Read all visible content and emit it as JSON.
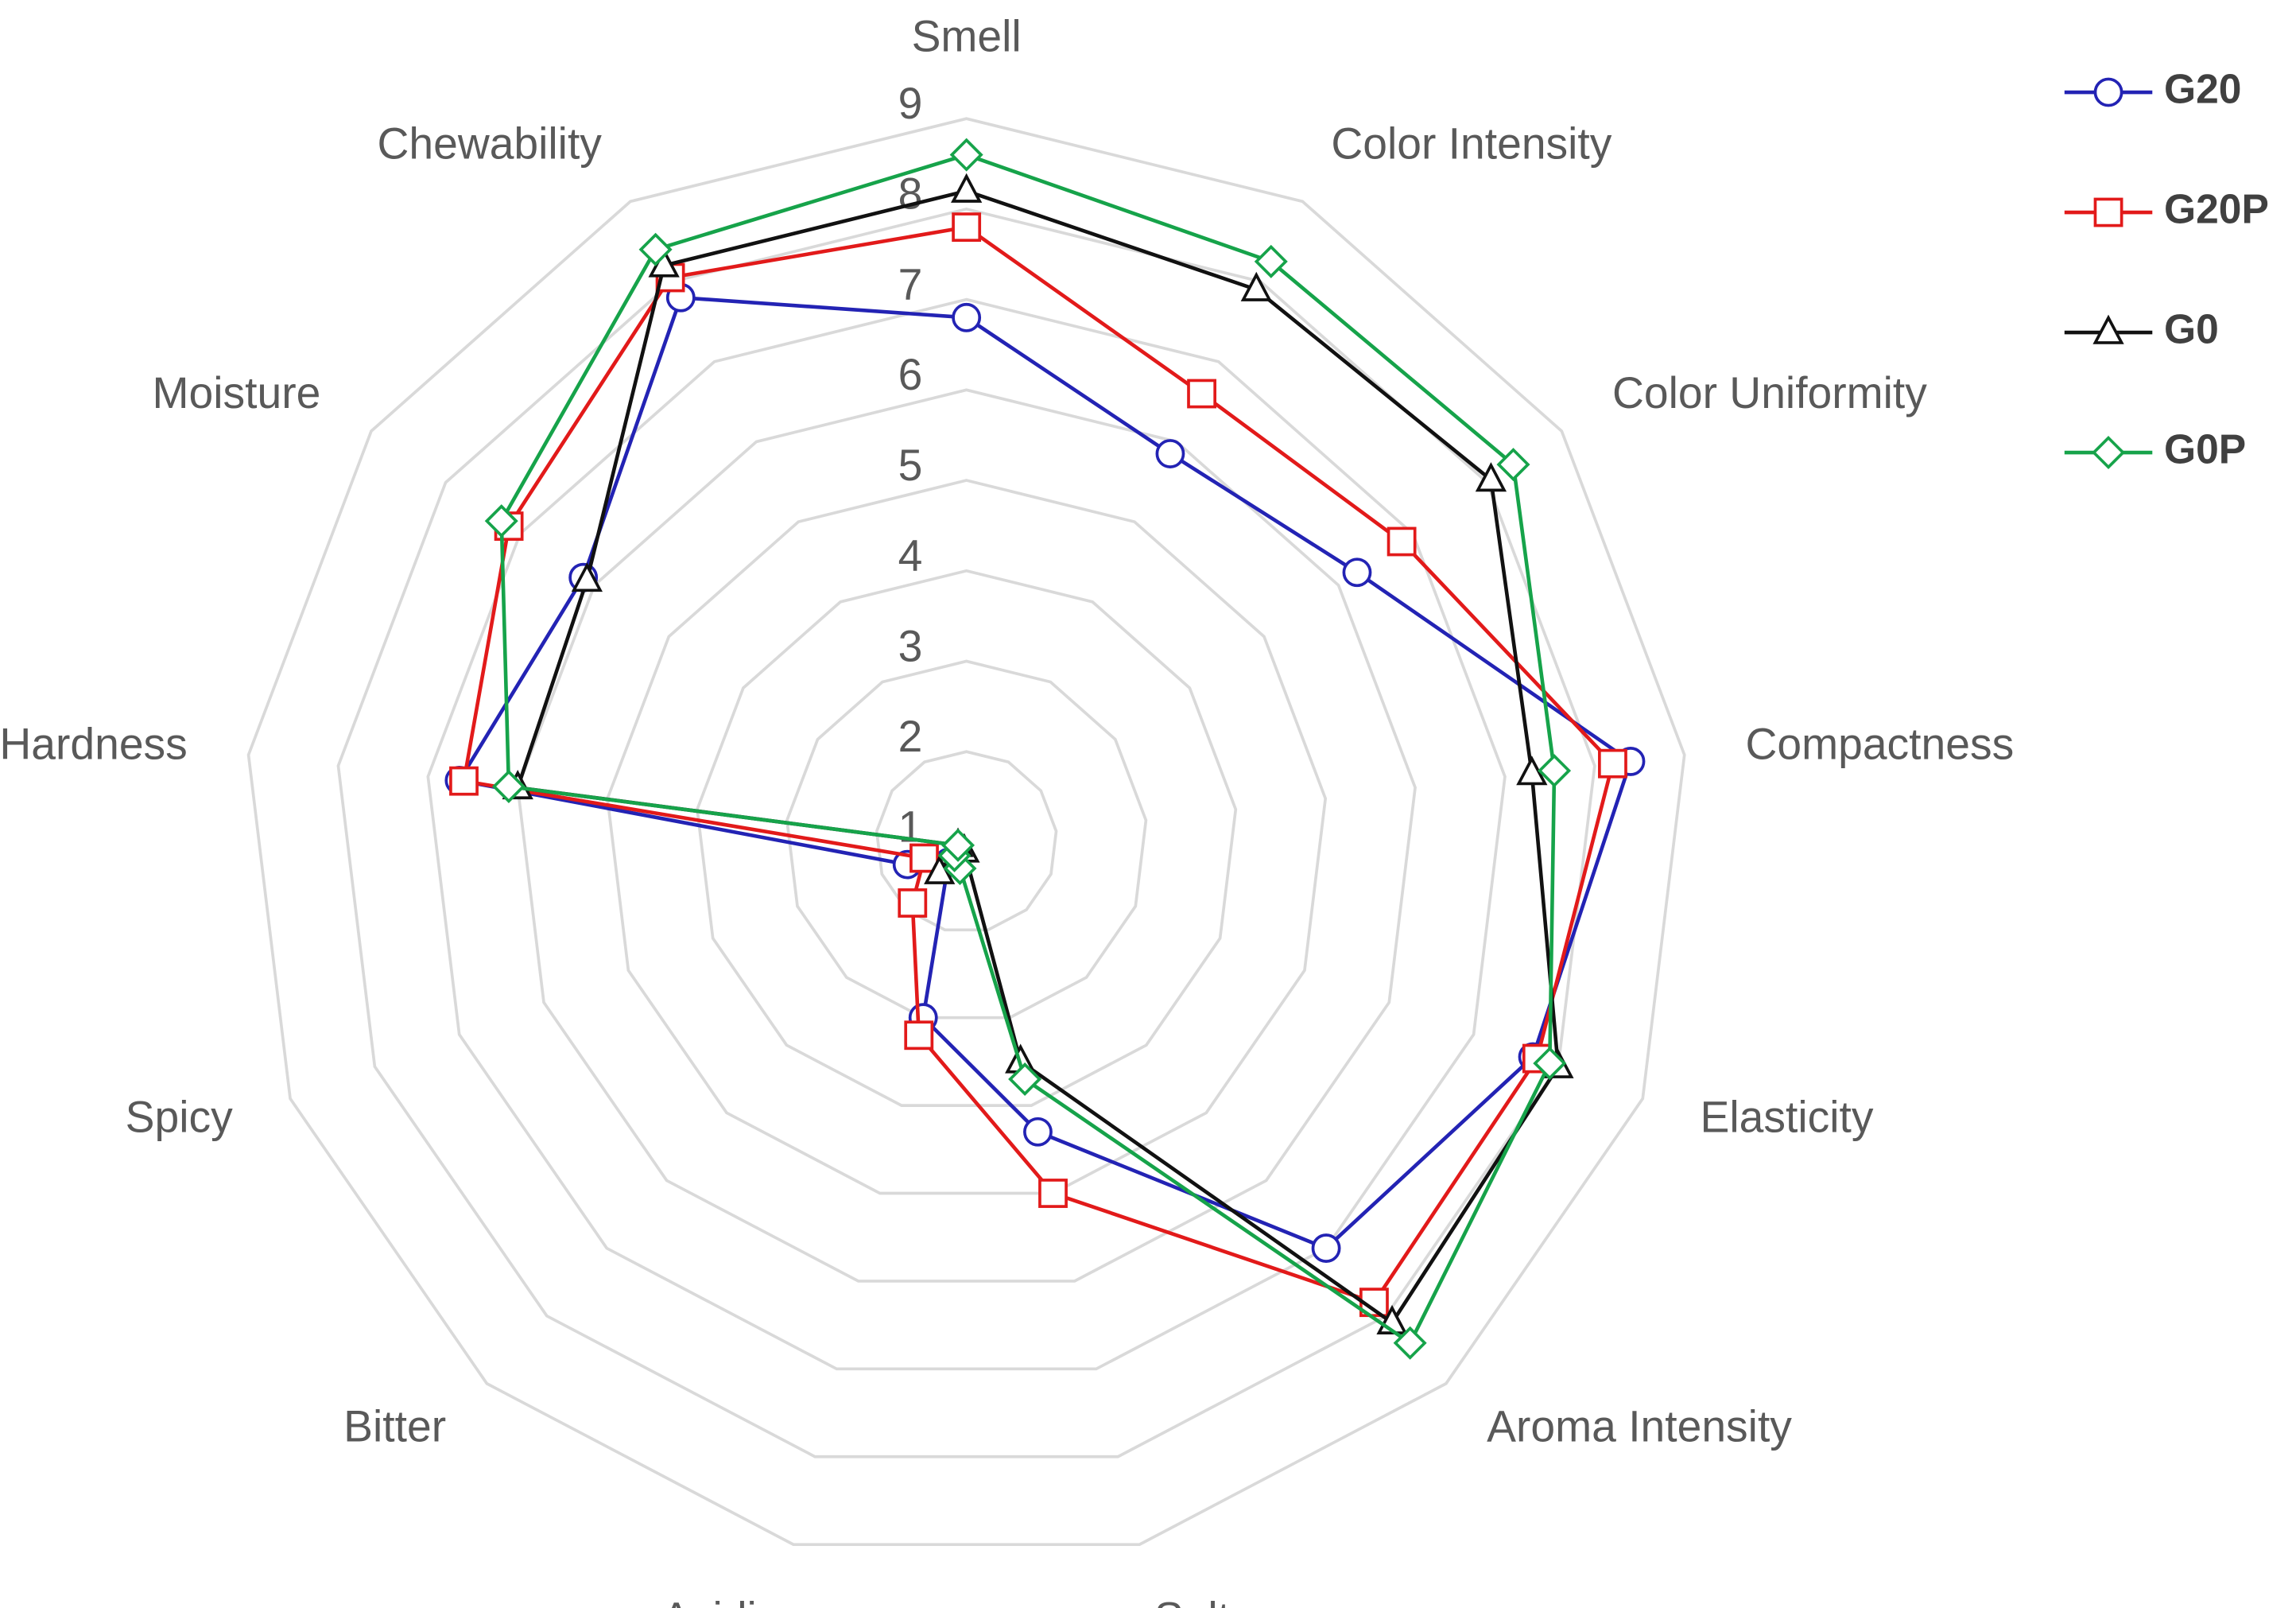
{
  "chart_data": {
    "type": "radar",
    "categories": [
      "Smell",
      "Color Intensity",
      "Color Uniformity",
      "Compactness",
      "Elasticity",
      "Aroma Intensity",
      "Salty",
      "Acidic",
      "Bitter",
      "Spicy",
      "Hardness",
      "Moisture",
      "Chewability"
    ],
    "rlim": [
      1,
      9
    ],
    "rticks": [
      1,
      2,
      3,
      4,
      5,
      6,
      7,
      8,
      9
    ],
    "grid": true,
    "legend": "top-right",
    "series": [
      {
        "name": "G20",
        "color": "#2323b4",
        "marker": "circle",
        "values": [
          6.8,
          5.85,
          6.25,
          8.4,
          7.7,
          7.0,
          4.3,
          3.0,
          1.3,
          1.7,
          6.65,
          6.15,
          7.8
        ]
      },
      {
        "name": "G20P",
        "color": "#e21a1a",
        "marker": "square",
        "values": [
          7.8,
          6.6,
          6.85,
          8.2,
          7.75,
          7.8,
          5.0,
          3.2,
          1.9,
          1.5,
          6.6,
          7.15,
          8.05
        ]
      },
      {
        "name": "G0",
        "color": "#111111",
        "marker": "triangle",
        "values": [
          8.2,
          7.9,
          8.05,
          7.3,
          8.0,
          8.1,
          3.5,
          1.1,
          1.45,
          1.1,
          6.0,
          6.1,
          8.2
        ]
      },
      {
        "name": "G0P",
        "color": "#16a34a",
        "marker": "diamond",
        "values": [
          8.6,
          8.25,
          8.35,
          7.55,
          7.9,
          8.4,
          3.7,
          1.3,
          1.2,
          1.1,
          6.1,
          7.25,
          8.4
        ]
      }
    ]
  }
}
